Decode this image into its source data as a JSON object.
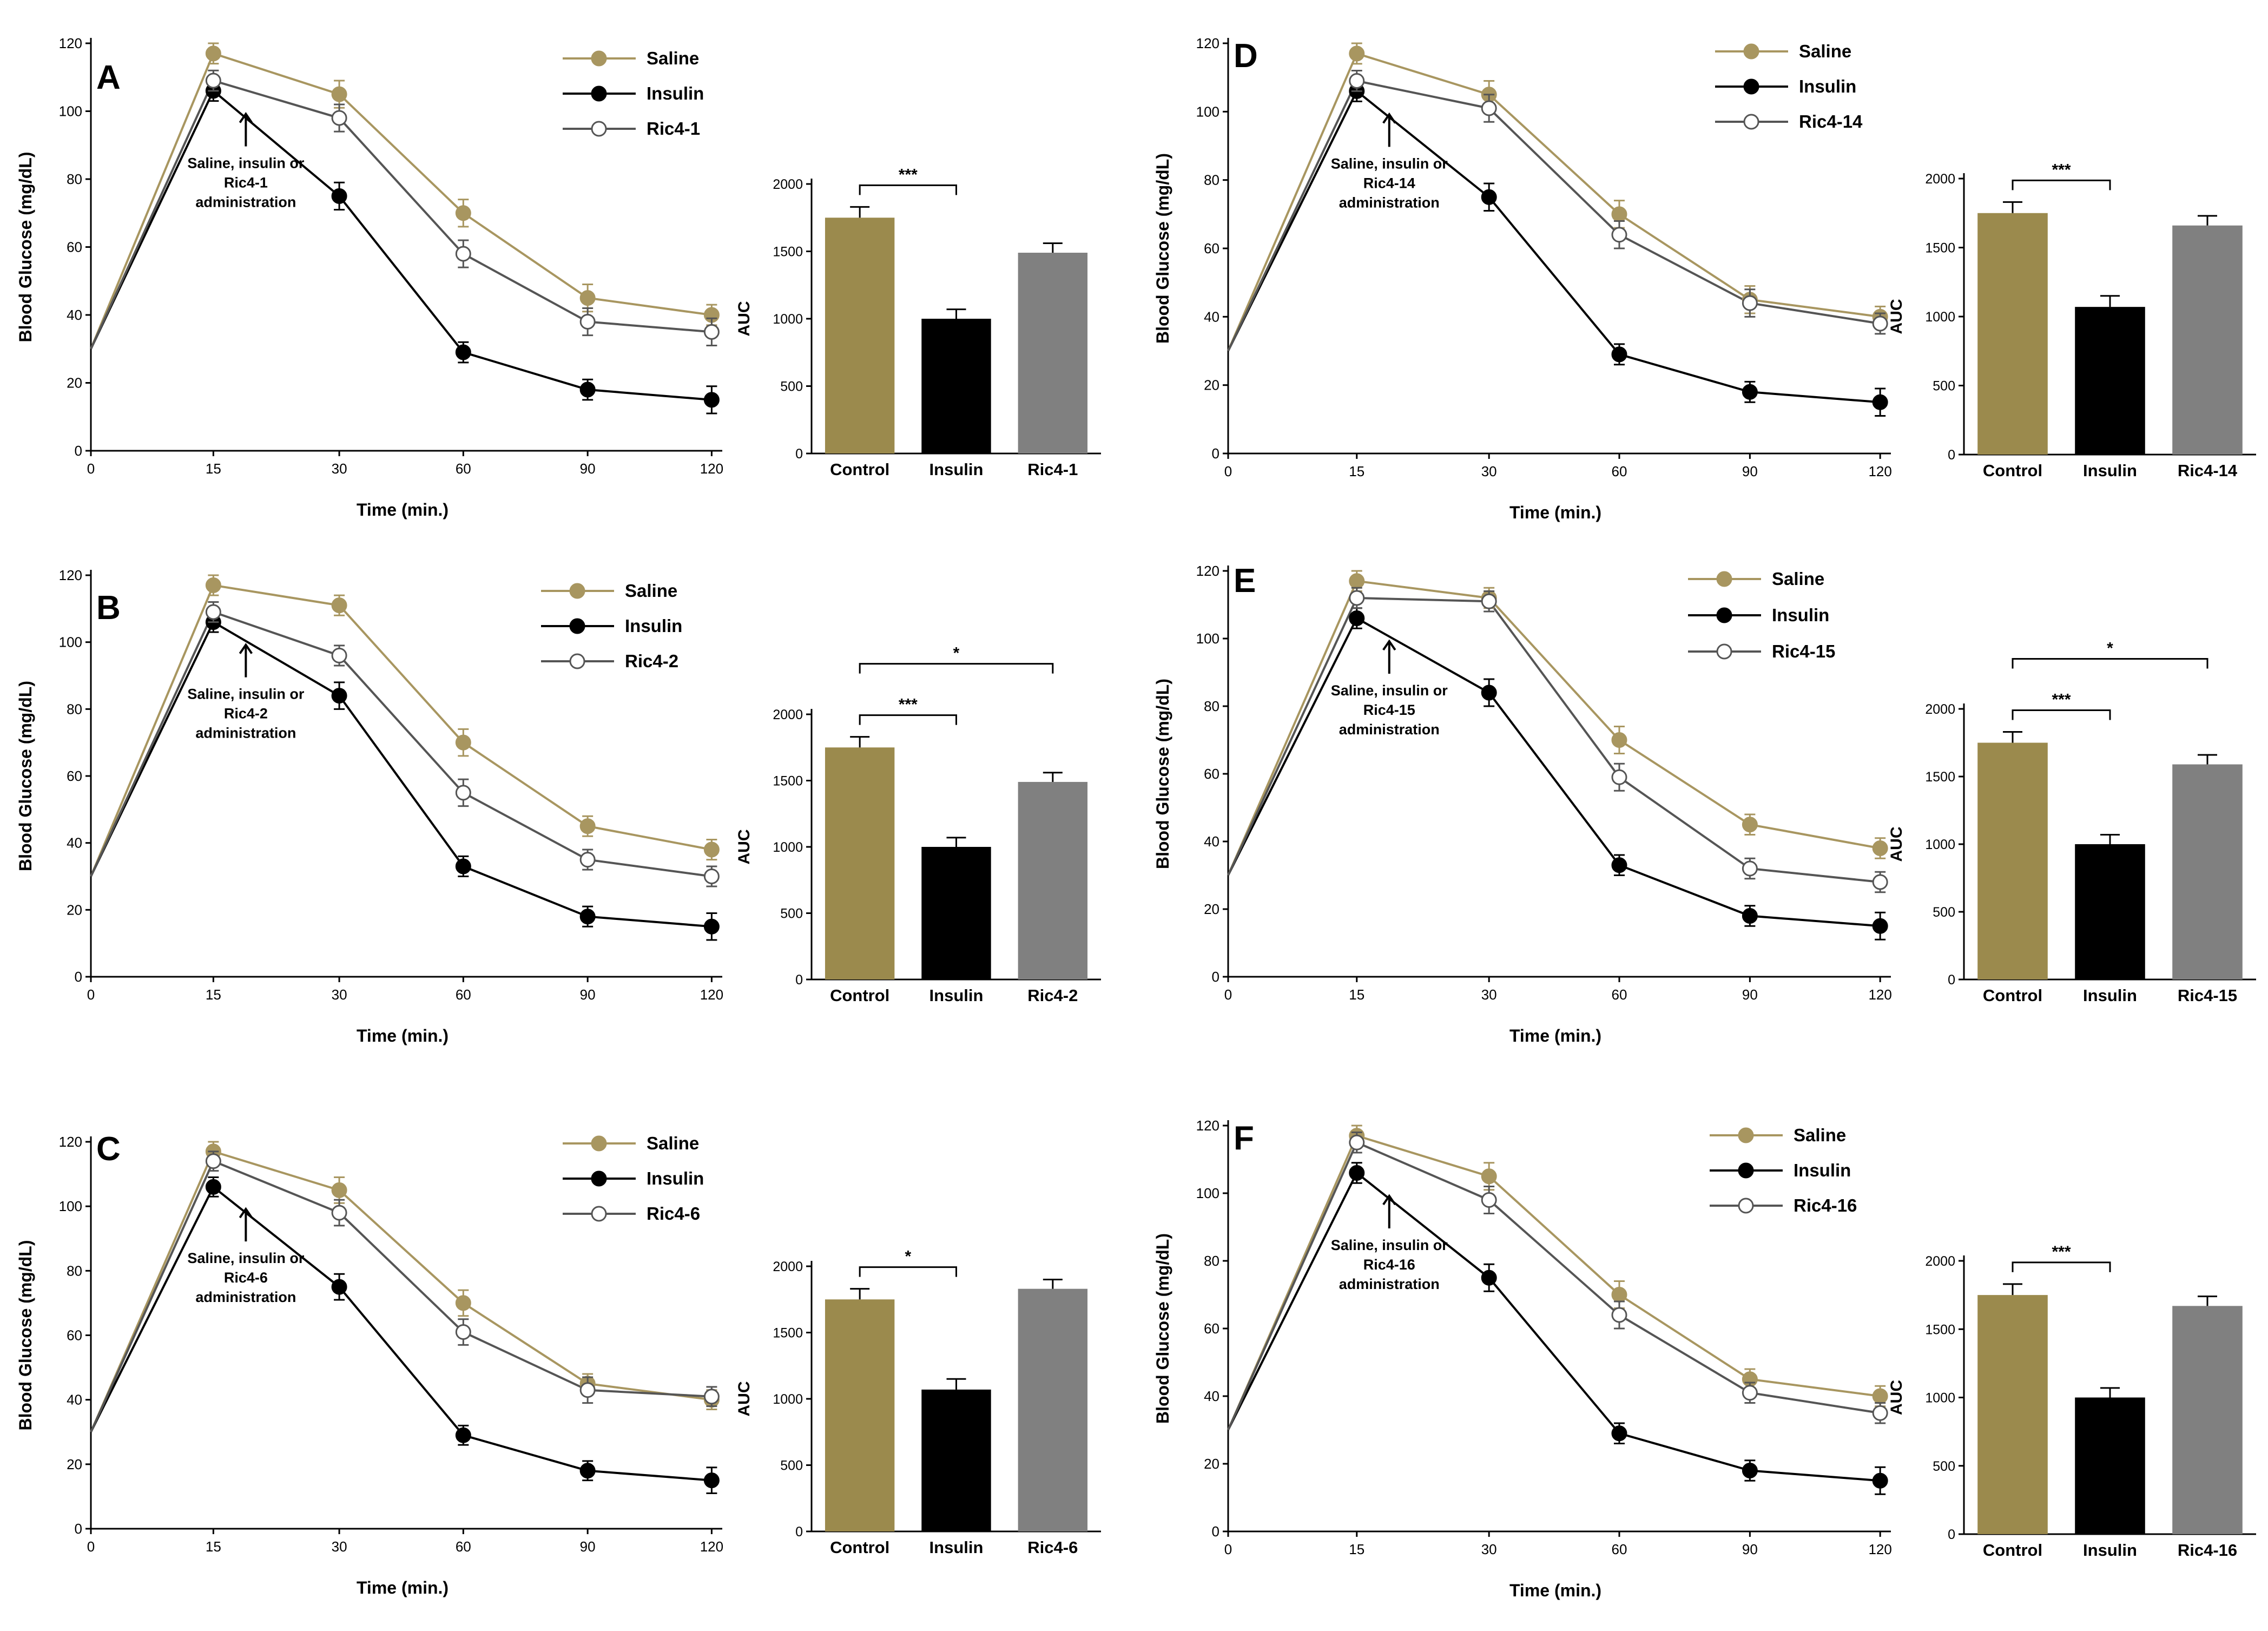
{
  "colors": {
    "saline": "#a89660",
    "insulin": "#000000",
    "ric_line": "#555555",
    "control_bar": "#9b8a4d",
    "insulin_bar": "#000000",
    "ric_bar": "#808080"
  },
  "chart_data": [
    {
      "type": "line",
      "panel": "A",
      "ylabel": "Blood Glucose (mg/dL)",
      "xlabel": "Time (min.)",
      "x_ticks": [
        "0",
        "15",
        "30",
        "60",
        "90",
        "120"
      ],
      "ylim": [
        0,
        120
      ],
      "yticks": [
        "0",
        "20",
        "40",
        "60",
        "80",
        "100",
        "120"
      ],
      "annotation": [
        "Saline, insulin or",
        "Ric4-1",
        "administration"
      ],
      "series": [
        {
          "name": "Saline",
          "values": [
            30,
            117,
            105,
            70,
            45,
            40
          ],
          "errors": [
            0,
            3,
            4,
            4,
            4,
            3
          ]
        },
        {
          "name": "Insulin",
          "values": [
            30,
            106,
            75,
            29,
            18,
            15
          ],
          "errors": [
            0,
            3,
            4,
            3,
            3,
            4
          ]
        },
        {
          "name": "Ric4-1",
          "values": [
            30,
            109,
            98,
            58,
            38,
            35
          ],
          "errors": [
            0,
            3,
            4,
            4,
            4,
            4
          ]
        }
      ],
      "bar": {
        "ylabel": "AUC",
        "categories": [
          "Control",
          "Insulin",
          "Ric4-1"
        ],
        "values": [
          1750,
          1000,
          1490
        ],
        "errors": [
          80,
          70,
          70
        ],
        "ylim": [
          0,
          2000
        ],
        "yticks": [
          "0",
          "500",
          "1000",
          "1500",
          "2000"
        ],
        "sig": [
          {
            "from": 0,
            "to": 1,
            "label": "***"
          }
        ]
      }
    },
    {
      "type": "line",
      "panel": "B",
      "ylabel": "Blood Glucose (mg/dL)",
      "xlabel": "Time (min.)",
      "x_ticks": [
        "0",
        "15",
        "30",
        "60",
        "90",
        "120"
      ],
      "ylim": [
        0,
        120
      ],
      "yticks": [
        "0",
        "20",
        "40",
        "60",
        "80",
        "100",
        "120"
      ],
      "annotation": [
        "Saline, insulin or",
        "Ric4-2",
        "administration"
      ],
      "series": [
        {
          "name": "Saline",
          "values": [
            30,
            117,
            111,
            70,
            45,
            38
          ],
          "errors": [
            0,
            3,
            3,
            4,
            3,
            3
          ]
        },
        {
          "name": "Insulin",
          "values": [
            30,
            106,
            84,
            33,
            18,
            15
          ],
          "errors": [
            0,
            3,
            4,
            3,
            3,
            4
          ]
        },
        {
          "name": "Ric4-2",
          "values": [
            30,
            109,
            96,
            55,
            35,
            30
          ],
          "errors": [
            0,
            3,
            3,
            4,
            3,
            3
          ]
        }
      ],
      "bar": {
        "ylabel": "AUC",
        "categories": [
          "Control",
          "Insulin",
          "Ric4-2"
        ],
        "values": [
          1750,
          1000,
          1490
        ],
        "errors": [
          80,
          70,
          70
        ],
        "ylim": [
          0,
          2000
        ],
        "yticks": [
          "0",
          "500",
          "1000",
          "1500",
          "2000"
        ],
        "sig": [
          {
            "from": 0,
            "to": 1,
            "label": "***"
          },
          {
            "from": 0,
            "to": 2,
            "label": "*"
          }
        ]
      }
    },
    {
      "type": "line",
      "panel": "C",
      "ylabel": "Blood Glucose (mg/dL)",
      "xlabel": "Time (min.)",
      "x_ticks": [
        "0",
        "15",
        "30",
        "60",
        "90",
        "120"
      ],
      "ylim": [
        0,
        120
      ],
      "yticks": [
        "0",
        "20",
        "40",
        "60",
        "80",
        "100",
        "120"
      ],
      "annotation": [
        "Saline, insulin or",
        "Ric4-6",
        "administration"
      ],
      "series": [
        {
          "name": "Saline",
          "values": [
            30,
            117,
            105,
            70,
            45,
            40
          ],
          "errors": [
            0,
            3,
            4,
            4,
            3,
            3
          ]
        },
        {
          "name": "Insulin",
          "values": [
            30,
            106,
            75,
            29,
            18,
            15
          ],
          "errors": [
            0,
            3,
            4,
            3,
            3,
            4
          ]
        },
        {
          "name": "Ric4-6",
          "values": [
            30,
            114,
            98,
            61,
            43,
            41
          ],
          "errors": [
            0,
            3,
            4,
            4,
            4,
            3
          ]
        }
      ],
      "bar": {
        "ylabel": "AUC",
        "categories": [
          "Control",
          "Insulin",
          "Ric4-6"
        ],
        "values": [
          1750,
          1070,
          1830
        ],
        "errors": [
          80,
          80,
          70
        ],
        "ylim": [
          0,
          2000
        ],
        "yticks": [
          "0",
          "500",
          "1000",
          "1500",
          "2000"
        ],
        "sig": [
          {
            "from": 0,
            "to": 1,
            "label": "*"
          }
        ]
      }
    },
    {
      "type": "line",
      "panel": "D",
      "ylabel": "Blood Glucose (mg/dL)",
      "xlabel": "Time (min.)",
      "x_ticks": [
        "0",
        "15",
        "30",
        "60",
        "90",
        "120"
      ],
      "ylim": [
        0,
        120
      ],
      "yticks": [
        "0",
        "20",
        "40",
        "60",
        "80",
        "100",
        "120"
      ],
      "annotation": [
        "Saline, insulin or",
        "Ric4-14",
        "administration"
      ],
      "series": [
        {
          "name": "Saline",
          "values": [
            30,
            117,
            105,
            70,
            45,
            40
          ],
          "errors": [
            0,
            3,
            4,
            4,
            4,
            3
          ]
        },
        {
          "name": "Insulin",
          "values": [
            30,
            106,
            75,
            29,
            18,
            15
          ],
          "errors": [
            0,
            3,
            4,
            3,
            3,
            4
          ]
        },
        {
          "name": "Ric4-14",
          "values": [
            30,
            109,
            101,
            64,
            44,
            38
          ],
          "errors": [
            0,
            3,
            4,
            4,
            4,
            3
          ]
        }
      ],
      "bar": {
        "ylabel": "AUC",
        "categories": [
          "Control",
          "Insulin",
          "Ric4-14"
        ],
        "values": [
          1750,
          1070,
          1660
        ],
        "errors": [
          80,
          80,
          70
        ],
        "ylim": [
          0,
          2000
        ],
        "yticks": [
          "0",
          "500",
          "1000",
          "1500",
          "2000"
        ],
        "sig": [
          {
            "from": 0,
            "to": 1,
            "label": "***"
          }
        ]
      }
    },
    {
      "type": "line",
      "panel": "E",
      "ylabel": "Blood Glucose (mg/dL)",
      "xlabel": "Time (min.)",
      "x_ticks": [
        "0",
        "15",
        "30",
        "60",
        "90",
        "120"
      ],
      "ylim": [
        0,
        120
      ],
      "yticks": [
        "0",
        "20",
        "40",
        "60",
        "80",
        "100",
        "120"
      ],
      "annotation": [
        "Saline, insulin or",
        "Ric4-15",
        "administration"
      ],
      "series": [
        {
          "name": "Saline",
          "values": [
            30,
            117,
            112,
            70,
            45,
            38
          ],
          "errors": [
            0,
            3,
            3,
            4,
            3,
            3
          ]
        },
        {
          "name": "Insulin",
          "values": [
            30,
            106,
            84,
            33,
            18,
            15
          ],
          "errors": [
            0,
            3,
            4,
            3,
            3,
            4
          ]
        },
        {
          "name": "Ric4-15",
          "values": [
            30,
            112,
            111,
            59,
            32,
            28
          ],
          "errors": [
            0,
            3,
            3,
            4,
            3,
            3
          ]
        }
      ],
      "bar": {
        "ylabel": "AUC",
        "categories": [
          "Control",
          "Insulin",
          "Ric4-15"
        ],
        "values": [
          1750,
          1000,
          1590
        ],
        "errors": [
          80,
          70,
          70
        ],
        "ylim": [
          0,
          2000
        ],
        "yticks": [
          "0",
          "500",
          "1000",
          "1500",
          "2000"
        ],
        "sig": [
          {
            "from": 0,
            "to": 1,
            "label": "***"
          },
          {
            "from": 0,
            "to": 2,
            "label": "*"
          }
        ]
      }
    },
    {
      "type": "line",
      "panel": "F",
      "ylabel": "Blood Glucose (mg/dL)",
      "xlabel": "Time (min.)",
      "x_ticks": [
        "0",
        "15",
        "30",
        "60",
        "90",
        "120"
      ],
      "ylim": [
        0,
        120
      ],
      "yticks": [
        "0",
        "20",
        "40",
        "60",
        "80",
        "100",
        "120"
      ],
      "annotation": [
        "Saline, insulin or",
        "Ric4-16",
        "administration"
      ],
      "series": [
        {
          "name": "Saline",
          "values": [
            30,
            117,
            105,
            70,
            45,
            40
          ],
          "errors": [
            0,
            3,
            4,
            4,
            3,
            3
          ]
        },
        {
          "name": "Insulin",
          "values": [
            30,
            106,
            75,
            29,
            18,
            15
          ],
          "errors": [
            0,
            3,
            4,
            3,
            3,
            4
          ]
        },
        {
          "name": "Ric4-16",
          "values": [
            30,
            115,
            98,
            64,
            41,
            35
          ],
          "errors": [
            0,
            3,
            4,
            4,
            3,
            3
          ]
        }
      ],
      "bar": {
        "ylabel": "AUC",
        "categories": [
          "Control",
          "Insulin",
          "Ric4-16"
        ],
        "values": [
          1750,
          1000,
          1670
        ],
        "errors": [
          80,
          70,
          70
        ],
        "ylim": [
          0,
          2000
        ],
        "yticks": [
          "0",
          "500",
          "1000",
          "1500",
          "2000"
        ],
        "sig": [
          {
            "from": 0,
            "to": 1,
            "label": "***"
          }
        ]
      }
    }
  ]
}
